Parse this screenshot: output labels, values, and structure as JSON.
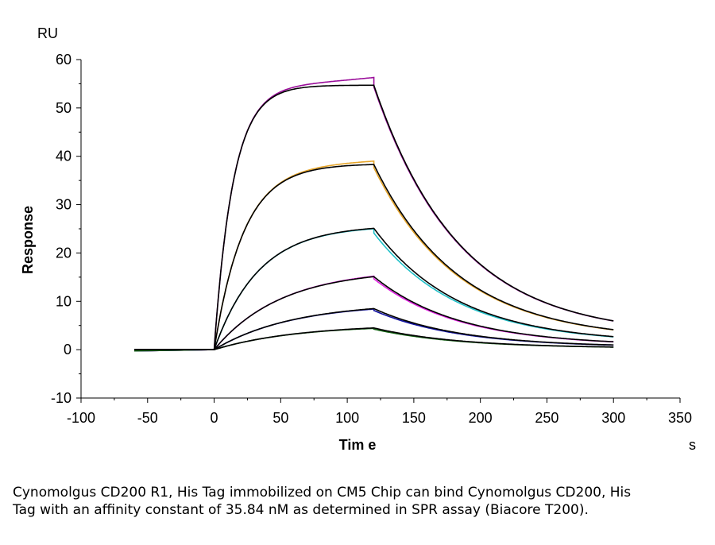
{
  "chart_data": {
    "type": "line",
    "xlabel": "Tim e",
    "ylabel": "Response",
    "x_unit": "s",
    "y_unit": "RU",
    "xlim": [
      -100,
      350
    ],
    "ylim": [
      -10,
      60
    ],
    "x_ticks": [
      "-100",
      "-50",
      "0",
      "50",
      "100",
      "150",
      "200",
      "250",
      "300",
      "350"
    ],
    "y_ticks": [
      "-10",
      "0",
      "10",
      "20",
      "30",
      "40",
      "50",
      "60"
    ],
    "grid": false,
    "legend": "none",
    "association_start": 0,
    "dissociation_start": 120,
    "end_time": 300,
    "baseline_start": -60,
    "series": [
      {
        "color": "#9b0f9b",
        "fit_color": "#000000",
        "plateau_RU": 54.7,
        "end_of_association_RU": 56.3,
        "end_RU": 2.9,
        "ka_shape": 0.07,
        "kd_shape": 0.0165
      },
      {
        "color": "#e6a52a",
        "fit_color": "#000000",
        "plateau_RU": 38.3,
        "end_of_association_RU": 39.0,
        "end_RU": 2.0,
        "ka_shape": 0.045,
        "kd_shape": 0.0165
      },
      {
        "color": "#20c0c8",
        "fit_color": "#000000",
        "plateau_RU": 25.1,
        "end_of_association_RU": 25.0,
        "end_RU": 1.3,
        "ka_shape": 0.03,
        "kd_shape": 0.0165
      },
      {
        "color": "#e020e0",
        "fit_color": "#000000",
        "plateau_RU": 15.1,
        "end_of_association_RU": 15.2,
        "end_RU": 0.8,
        "ka_shape": 0.02,
        "kd_shape": 0.0165
      },
      {
        "color": "#1010a0",
        "fit_color": "#000000",
        "plateau_RU": 8.5,
        "end_of_association_RU": 8.4,
        "end_RU": 0.5,
        "ka_shape": 0.017,
        "kd_shape": 0.0165
      },
      {
        "color": "#106010",
        "fit_color": "#000000",
        "plateau_RU": 4.5,
        "end_of_association_RU": 4.4,
        "end_RU": 0.3,
        "ka_shape": 0.016,
        "kd_shape": 0.0165
      }
    ]
  },
  "caption": "Cynomolgus CD200 R1, His Tag immobilized on CM5 Chip can bind Cynomolgus CD200, His Tag with an affinity constant of 35.84 nM as determined in SPR assay (Biacore T200)."
}
